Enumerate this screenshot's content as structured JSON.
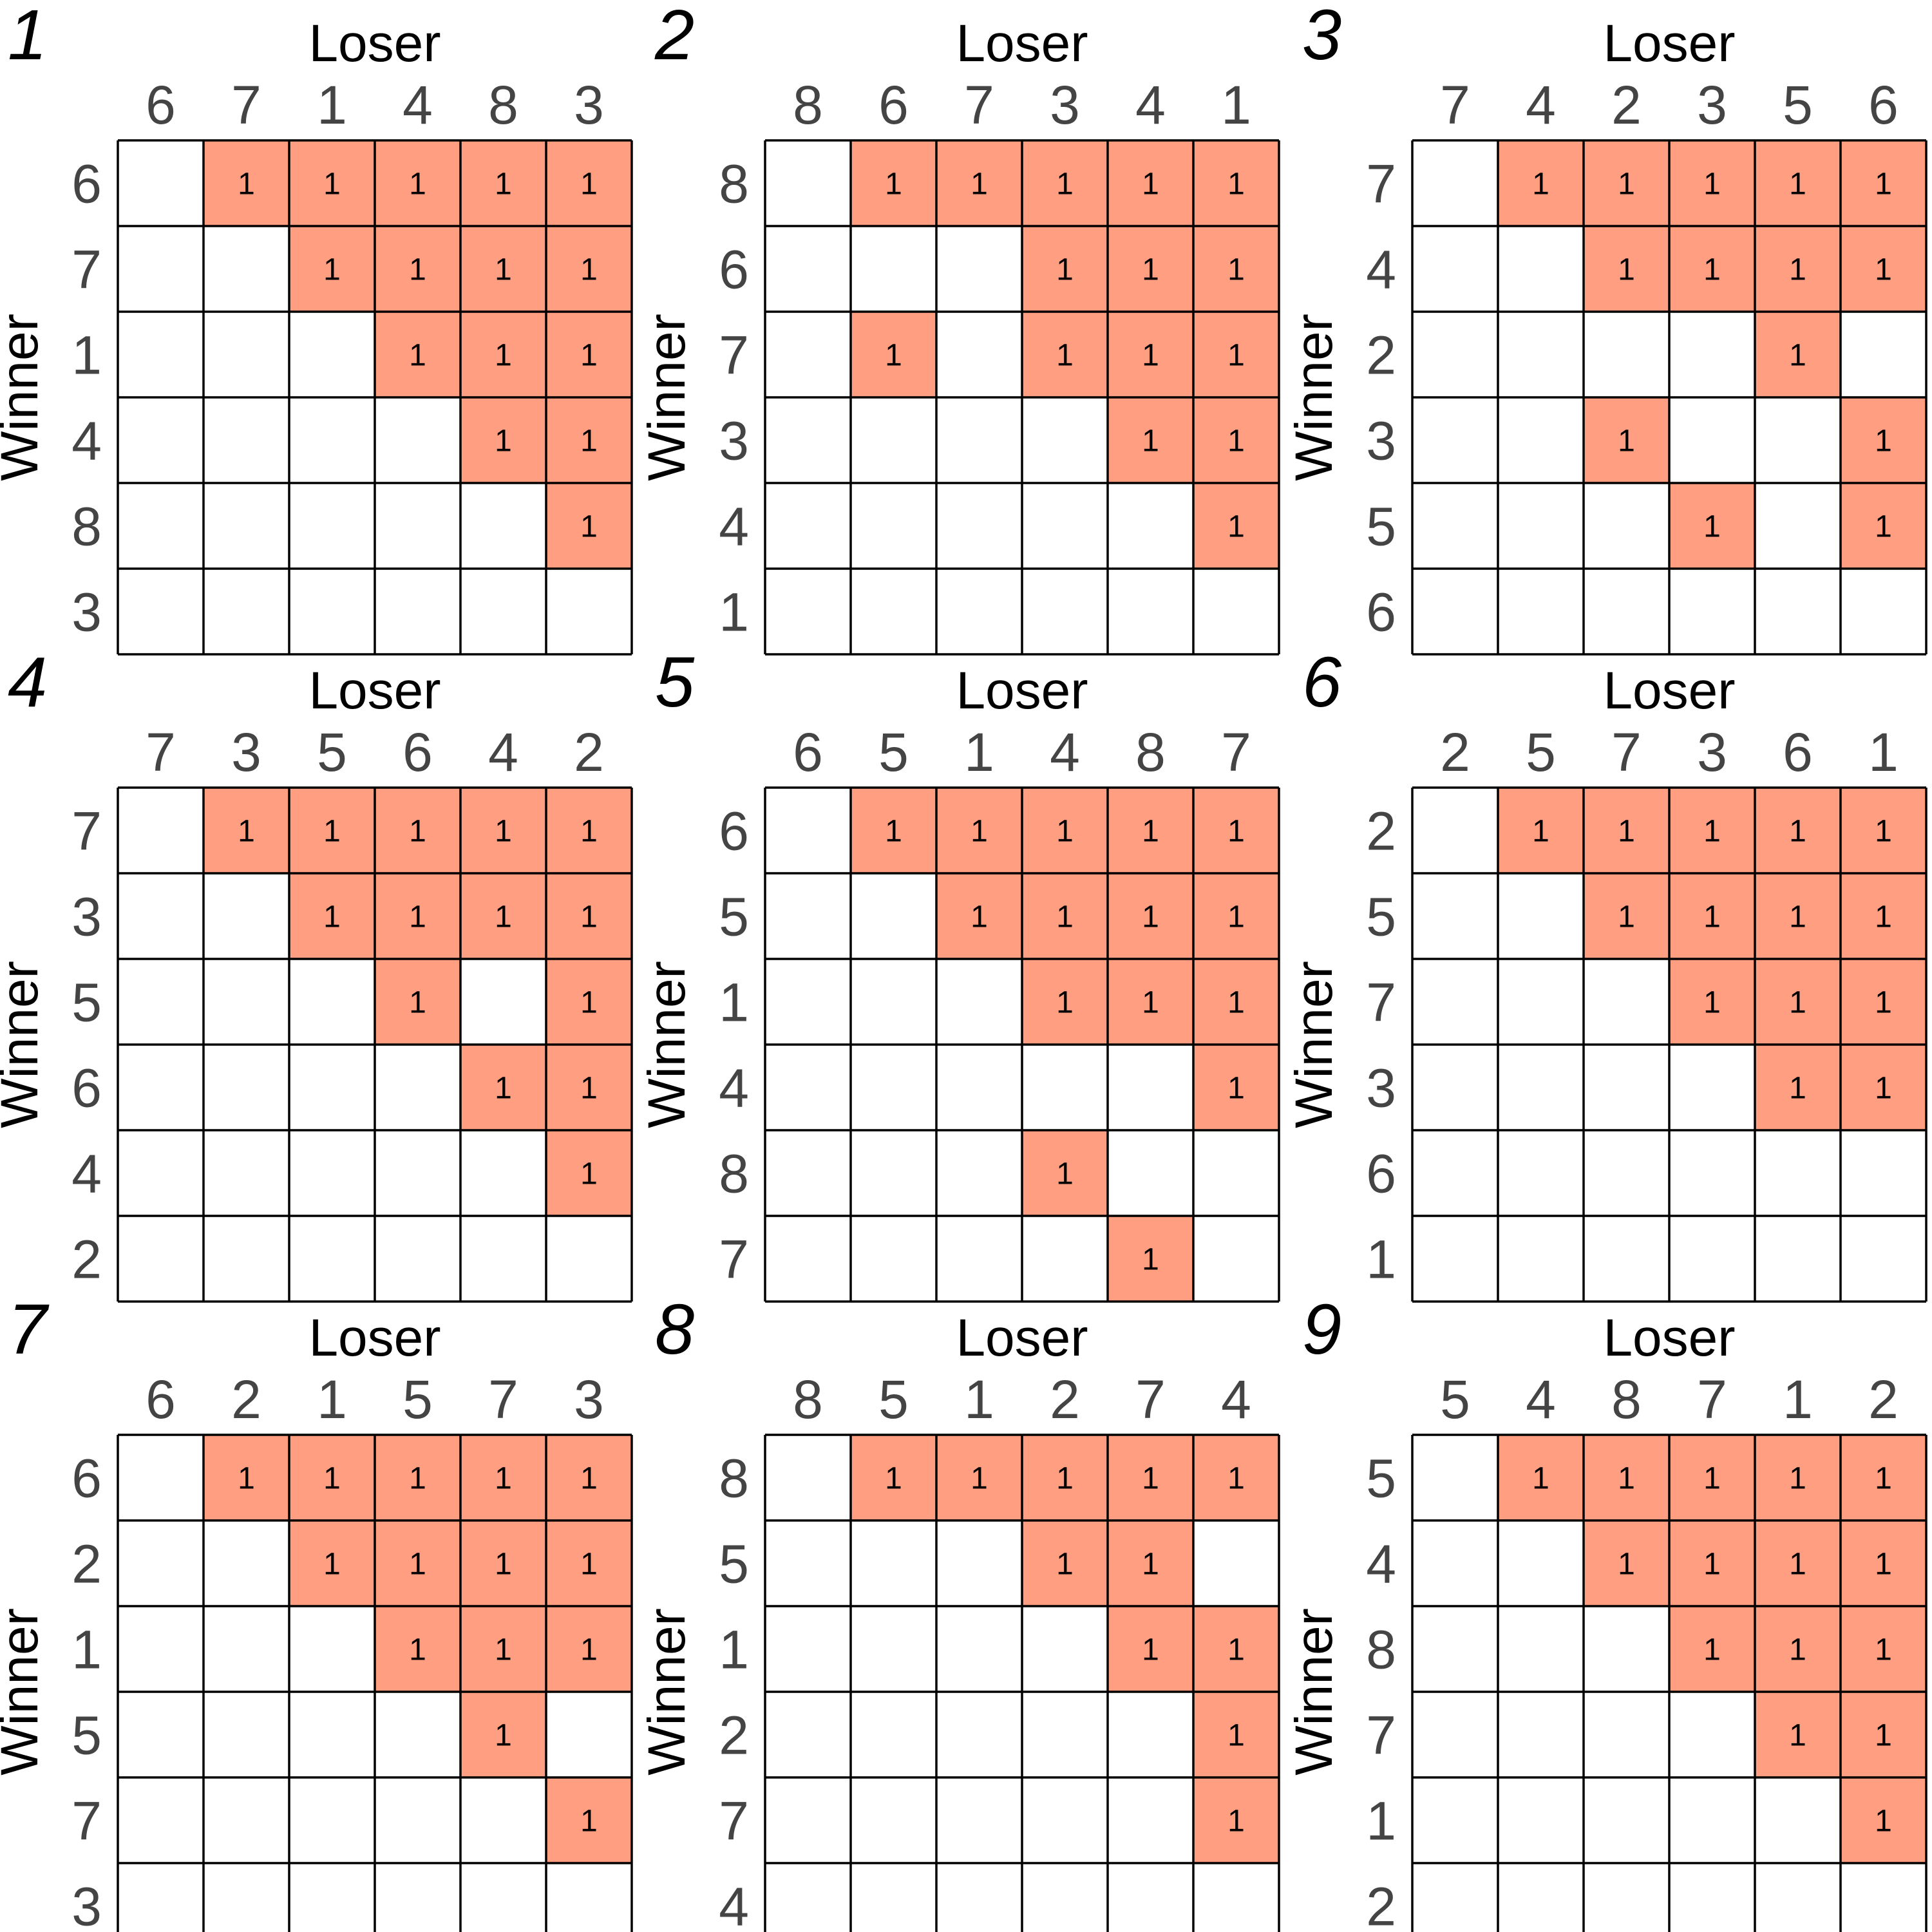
{
  "chart_data": [
    {
      "type": "heatmap",
      "panel": "1",
      "xlabel": "Loser",
      "ylabel": "Winner",
      "x_labels": [
        "6",
        "7",
        "1",
        "4",
        "8",
        "3"
      ],
      "y_labels": [
        "6",
        "7",
        "1",
        "4",
        "8",
        "3"
      ],
      "values": [
        [
          0,
          1,
          1,
          1,
          1,
          1
        ],
        [
          0,
          0,
          1,
          1,
          1,
          1
        ],
        [
          0,
          0,
          0,
          1,
          1,
          1
        ],
        [
          0,
          0,
          0,
          0,
          1,
          1
        ],
        [
          0,
          0,
          0,
          0,
          0,
          1
        ],
        [
          0,
          0,
          0,
          0,
          0,
          0
        ]
      ]
    },
    {
      "type": "heatmap",
      "panel": "2",
      "xlabel": "Loser",
      "ylabel": "Winner",
      "x_labels": [
        "8",
        "6",
        "7",
        "3",
        "4",
        "1"
      ],
      "y_labels": [
        "8",
        "6",
        "7",
        "3",
        "4",
        "1"
      ],
      "values": [
        [
          0,
          1,
          1,
          1,
          1,
          1
        ],
        [
          0,
          0,
          0,
          1,
          1,
          1
        ],
        [
          0,
          1,
          0,
          1,
          1,
          1
        ],
        [
          0,
          0,
          0,
          0,
          1,
          1
        ],
        [
          0,
          0,
          0,
          0,
          0,
          1
        ],
        [
          0,
          0,
          0,
          0,
          0,
          0
        ]
      ]
    },
    {
      "type": "heatmap",
      "panel": "3",
      "xlabel": "Loser",
      "ylabel": "Winner",
      "x_labels": [
        "7",
        "4",
        "2",
        "3",
        "5",
        "6"
      ],
      "y_labels": [
        "7",
        "4",
        "2",
        "3",
        "5",
        "6"
      ],
      "values": [
        [
          0,
          1,
          1,
          1,
          1,
          1
        ],
        [
          0,
          0,
          1,
          1,
          1,
          1
        ],
        [
          0,
          0,
          0,
          0,
          1,
          0
        ],
        [
          0,
          0,
          1,
          0,
          0,
          1
        ],
        [
          0,
          0,
          0,
          1,
          0,
          1
        ],
        [
          0,
          0,
          0,
          0,
          0,
          0
        ]
      ]
    },
    {
      "type": "heatmap",
      "panel": "4",
      "xlabel": "Loser",
      "ylabel": "Winner",
      "x_labels": [
        "7",
        "3",
        "5",
        "6",
        "4",
        "2"
      ],
      "y_labels": [
        "7",
        "3",
        "5",
        "6",
        "4",
        "2"
      ],
      "values": [
        [
          0,
          1,
          1,
          1,
          1,
          1
        ],
        [
          0,
          0,
          1,
          1,
          1,
          1
        ],
        [
          0,
          0,
          0,
          1,
          0,
          1
        ],
        [
          0,
          0,
          0,
          0,
          1,
          1
        ],
        [
          0,
          0,
          0,
          0,
          0,
          1
        ],
        [
          0,
          0,
          0,
          0,
          0,
          0
        ]
      ]
    },
    {
      "type": "heatmap",
      "panel": "5",
      "xlabel": "Loser",
      "ylabel": "Winner",
      "x_labels": [
        "6",
        "5",
        "1",
        "4",
        "8",
        "7"
      ],
      "y_labels": [
        "6",
        "5",
        "1",
        "4",
        "8",
        "7"
      ],
      "values": [
        [
          0,
          1,
          1,
          1,
          1,
          1
        ],
        [
          0,
          0,
          1,
          1,
          1,
          1
        ],
        [
          0,
          0,
          0,
          1,
          1,
          1
        ],
        [
          0,
          0,
          0,
          0,
          0,
          1
        ],
        [
          0,
          0,
          0,
          1,
          0,
          0
        ],
        [
          0,
          0,
          0,
          0,
          1,
          0
        ]
      ]
    },
    {
      "type": "heatmap",
      "panel": "6",
      "xlabel": "Loser",
      "ylabel": "Winner",
      "x_labels": [
        "2",
        "5",
        "7",
        "3",
        "6",
        "1"
      ],
      "y_labels": [
        "2",
        "5",
        "7",
        "3",
        "6",
        "1"
      ],
      "values": [
        [
          0,
          1,
          1,
          1,
          1,
          1
        ],
        [
          0,
          0,
          1,
          1,
          1,
          1
        ],
        [
          0,
          0,
          0,
          1,
          1,
          1
        ],
        [
          0,
          0,
          0,
          0,
          1,
          1
        ],
        [
          0,
          0,
          0,
          0,
          0,
          0
        ],
        [
          0,
          0,
          0,
          0,
          0,
          0
        ]
      ]
    },
    {
      "type": "heatmap",
      "panel": "7",
      "xlabel": "Loser",
      "ylabel": "Winner",
      "x_labels": [
        "6",
        "2",
        "1",
        "5",
        "7",
        "3"
      ],
      "y_labels": [
        "6",
        "2",
        "1",
        "5",
        "7",
        "3"
      ],
      "values": [
        [
          0,
          1,
          1,
          1,
          1,
          1
        ],
        [
          0,
          0,
          1,
          1,
          1,
          1
        ],
        [
          0,
          0,
          0,
          1,
          1,
          1
        ],
        [
          0,
          0,
          0,
          0,
          1,
          0
        ],
        [
          0,
          0,
          0,
          0,
          0,
          1
        ],
        [
          0,
          0,
          0,
          0,
          0,
          0
        ]
      ]
    },
    {
      "type": "heatmap",
      "panel": "8",
      "xlabel": "Loser",
      "ylabel": "Winner",
      "x_labels": [
        "8",
        "5",
        "1",
        "2",
        "7",
        "4"
      ],
      "y_labels": [
        "8",
        "5",
        "1",
        "2",
        "7",
        "4"
      ],
      "values": [
        [
          0,
          1,
          1,
          1,
          1,
          1
        ],
        [
          0,
          0,
          0,
          1,
          1,
          0
        ],
        [
          0,
          0,
          0,
          0,
          1,
          1
        ],
        [
          0,
          0,
          0,
          0,
          0,
          1
        ],
        [
          0,
          0,
          0,
          0,
          0,
          1
        ],
        [
          0,
          0,
          0,
          0,
          0,
          0
        ]
      ]
    },
    {
      "type": "heatmap",
      "panel": "9",
      "xlabel": "Loser",
      "ylabel": "Winner",
      "x_labels": [
        "5",
        "4",
        "8",
        "7",
        "1",
        "2"
      ],
      "y_labels": [
        "5",
        "4",
        "8",
        "7",
        "1",
        "2"
      ],
      "values": [
        [
          0,
          1,
          1,
          1,
          1,
          1
        ],
        [
          0,
          0,
          1,
          1,
          1,
          1
        ],
        [
          0,
          0,
          0,
          1,
          1,
          1
        ],
        [
          0,
          0,
          0,
          0,
          1,
          1
        ],
        [
          0,
          0,
          0,
          0,
          0,
          1
        ],
        [
          0,
          0,
          0,
          0,
          0,
          0
        ]
      ]
    }
  ],
  "colors": {
    "filled_cell": "#FF9E80",
    "empty_cell": "#FFFFFF",
    "grid": "#000000",
    "tick_text": "#444444"
  }
}
